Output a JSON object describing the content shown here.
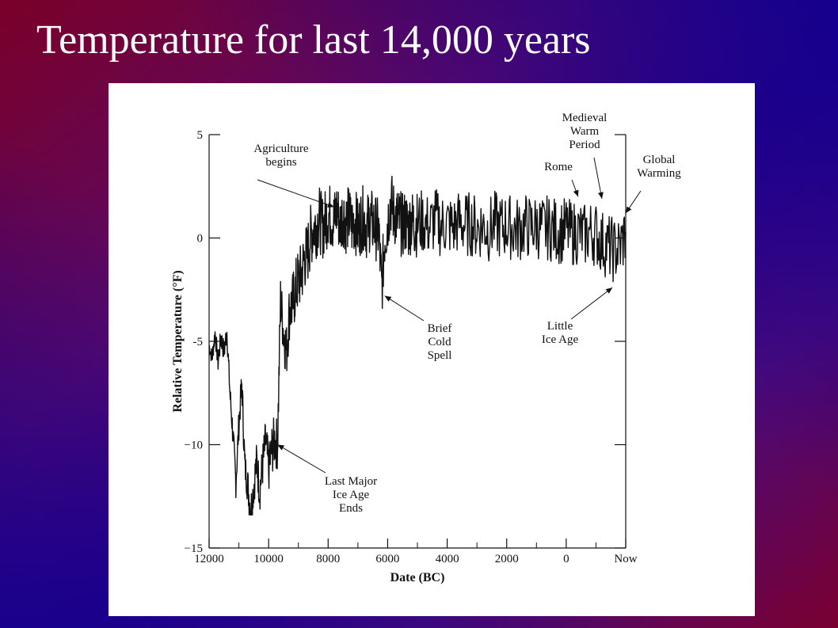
{
  "slide": {
    "title": "Temperature for last 14,000 years",
    "colors": {
      "red": "#8a0020",
      "blue": "#1a008c"
    }
  },
  "chart_data": {
    "type": "line",
    "title": "",
    "xlabel": "Date (BC)",
    "ylabel": "Relative Temperature (°F)",
    "xlim": [
      -12000,
      2000
    ],
    "ylim": [
      -15,
      5
    ],
    "x_ticks": [
      {
        "value": -12000,
        "label": "12000"
      },
      {
        "value": -10000,
        "label": "10000"
      },
      {
        "value": -8000,
        "label": "8000"
      },
      {
        "value": -6000,
        "label": "6000"
      },
      {
        "value": -4000,
        "label": "4000"
      },
      {
        "value": -2000,
        "label": "2000"
      },
      {
        "value": 0,
        "label": "0"
      },
      {
        "value": 2000,
        "label": "Now"
      }
    ],
    "y_ticks": [
      {
        "value": 5,
        "label": "5"
      },
      {
        "value": 0,
        "label": "0"
      },
      {
        "value": -5,
        "label": "-5"
      },
      {
        "value": -10,
        "label": "−10"
      },
      {
        "value": -15,
        "label": "−15"
      }
    ],
    "grid": false,
    "series": [
      {
        "x": [
          -12000,
          -11900,
          -11800,
          -11700,
          -11600,
          -11500,
          -11400,
          -11300,
          -11200,
          -11100,
          -11000,
          -10900,
          -10800,
          -10700,
          -10600,
          -10500,
          -10400,
          -10300,
          -10200,
          -10100,
          -10000,
          -9900,
          -9800,
          -9700,
          -9600,
          -9500,
          -9400,
          -9300,
          -9200,
          -9100,
          -9000,
          -8900,
          -8800,
          -8700,
          -8600,
          -8500,
          -8400,
          -8300,
          -8200,
          -8100,
          -8000,
          -7900,
          -7800,
          -7700,
          -7600,
          -7500,
          -7400,
          -7300,
          -7200,
          -7100,
          -7000,
          -6900,
          -6800,
          -6700,
          -6600,
          -6500,
          -6400,
          -6300,
          -6200,
          -6100,
          -6000,
          -5900,
          -5800,
          -5700,
          -5600,
          -5500,
          -5400,
          -5300,
          -5200,
          -5100,
          -5000,
          -4800,
          -4600,
          -4400,
          -4200,
          -4000,
          -3800,
          -3600,
          -3400,
          -3200,
          -3000,
          -2800,
          -2600,
          -2400,
          -2200,
          -2000,
          -1800,
          -1600,
          -1400,
          -1200,
          -1000,
          -800,
          -600,
          -400,
          -200,
          0,
          200,
          400,
          600,
          800,
          1000,
          1200,
          1400,
          1600,
          1800,
          2000
        ],
        "y": [
          -5.2,
          -5.8,
          -4.6,
          -6.0,
          -4.8,
          -5.5,
          -4.5,
          -7.5,
          -9.5,
          -11.8,
          -9.0,
          -7.0,
          -11.0,
          -12.0,
          -13.2,
          -12.0,
          -10.8,
          -12.2,
          -11.0,
          -9.8,
          -11.2,
          -10.3,
          -9.8,
          -10.0,
          -3.0,
          -4.5,
          -5.5,
          -3.5,
          -3.2,
          -2.6,
          -2.0,
          -1.8,
          -1.0,
          -0.8,
          0.0,
          0.5,
          0.6,
          1.0,
          0.5,
          0.8,
          1.2,
          1.0,
          0.8,
          1.4,
          0.6,
          1.2,
          0.8,
          1.0,
          0.6,
          0.9,
          0.4,
          0.8,
          1.0,
          0.5,
          0.9,
          0.7,
          0.5,
          0.3,
          -2.5,
          0.0,
          0.8,
          1.8,
          1.2,
          1.0,
          0.8,
          0.6,
          0.8,
          0.5,
          0.9,
          0.6,
          0.7,
          0.8,
          0.5,
          0.9,
          0.6,
          0.7,
          0.5,
          0.8,
          0.6,
          0.7,
          0.5,
          0.6,
          0.4,
          0.7,
          0.5,
          0.6,
          0.5,
          0.4,
          0.6,
          0.5,
          0.6,
          0.4,
          0.5,
          0.4,
          0.3,
          0.4,
          0.2,
          0.3,
          0.1,
          0.3,
          0.2,
          -0.2,
          -0.4,
          -0.6,
          -0.5,
          0.3
        ],
        "noise": [
          0.5,
          0.6,
          0.6,
          0.7,
          0.7,
          0.8,
          0.8,
          0.9,
          0.9,
          1.0,
          1.0,
          1.1,
          1.1,
          1.2,
          1.2,
          1.3,
          1.3,
          1.4,
          1.4,
          1.5,
          1.5,
          1.6,
          1.6,
          1.7,
          1.7,
          1.8,
          1.8,
          1.9,
          1.9,
          2.0,
          2.0,
          2.0,
          2.0,
          2.0,
          2.0,
          2.0,
          2.0,
          2.0,
          2.0,
          2.0,
          2.0,
          2.0,
          2.0,
          2.0,
          2.0,
          2.0,
          2.0,
          2.0,
          2.0,
          2.0,
          2.0,
          2.0,
          2.0,
          2.0,
          2.0,
          2.0,
          2.0,
          2.0,
          2.0,
          2.0,
          2.0,
          2.0,
          2.0,
          2.0,
          2.0,
          2.0,
          2.0,
          2.0,
          2.0,
          2.0,
          2.0,
          2.0,
          2.0,
          2.0,
          2.0,
          2.0,
          2.0,
          2.0,
          2.0,
          2.0,
          2.0,
          2.0,
          2.0,
          2.0,
          2.0,
          2.0,
          2.0,
          2.0,
          2.0,
          2.0,
          2.0,
          2.0,
          2.0,
          2.0,
          2.0,
          2.0,
          2.0,
          2.0,
          2.0,
          2.0,
          2.0,
          2.0,
          2.0,
          2.0,
          2.0,
          2.0
        ]
      }
    ],
    "annotations": [
      {
        "lines": [
          "Agriculture",
          "begins"
        ],
        "target": [
          -7800,
          1.5
        ]
      },
      {
        "lines": [
          "Brief",
          "Cold",
          "Spell"
        ],
        "target": [
          -6100,
          -2.8
        ]
      },
      {
        "lines": [
          "Last Major",
          "Ice Age",
          "Ends"
        ],
        "target": [
          -9700,
          -10.0
        ]
      },
      {
        "lines": [
          "Rome"
        ],
        "target": [
          400,
          2.0
        ]
      },
      {
        "lines": [
          "Medieval",
          "Warm",
          "Period"
        ],
        "target": [
          1200,
          1.9
        ]
      },
      {
        "lines": [
          "Global",
          "Warming"
        ],
        "target": [
          2000,
          1.2
        ]
      },
      {
        "lines": [
          "Little",
          "Ice Age"
        ],
        "target": [
          1550,
          -2.4
        ]
      }
    ]
  }
}
